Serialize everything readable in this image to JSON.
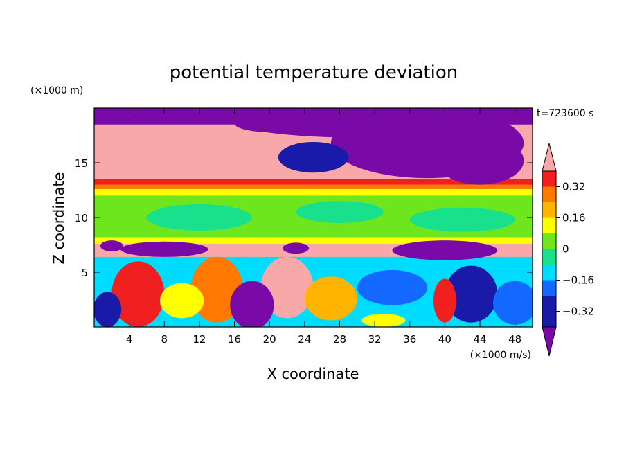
{
  "chart_data": {
    "type": "heatmap",
    "title": "potential temperature deviation",
    "xlabel": "X coordinate",
    "ylabel": "Z coordinate",
    "x_unit": "(×1000 m/s)",
    "y_unit": "(×1000 m)",
    "time_label": "t=723600 s",
    "xlim": [
      0,
      50
    ],
    "ylim": [
      0,
      20
    ],
    "x_ticks": [
      4,
      8,
      12,
      16,
      20,
      24,
      28,
      32,
      36,
      40,
      44,
      48
    ],
    "y_ticks": [
      5,
      10,
      15
    ],
    "colorbar": {
      "levels": [
        -0.4,
        -0.32,
        -0.24,
        -0.16,
        -0.08,
        0,
        0.08,
        0.16,
        0.24,
        0.32,
        0.4
      ],
      "labels": [
        "0.32",
        "0.16",
        "0",
        "−0.16",
        "−0.32"
      ],
      "label_values": [
        0.32,
        0.16,
        0,
        -0.16,
        -0.32
      ],
      "colors": [
        "#7a0aa8",
        "#1a1aa8",
        "#1268ff",
        "#00dcff",
        "#18e08c",
        "#6ee61e",
        "#ffff00",
        "#ffb400",
        "#ff7800",
        "#f02020",
        "#f8a8a8"
      ]
    },
    "grid": false,
    "legend": "right"
  }
}
